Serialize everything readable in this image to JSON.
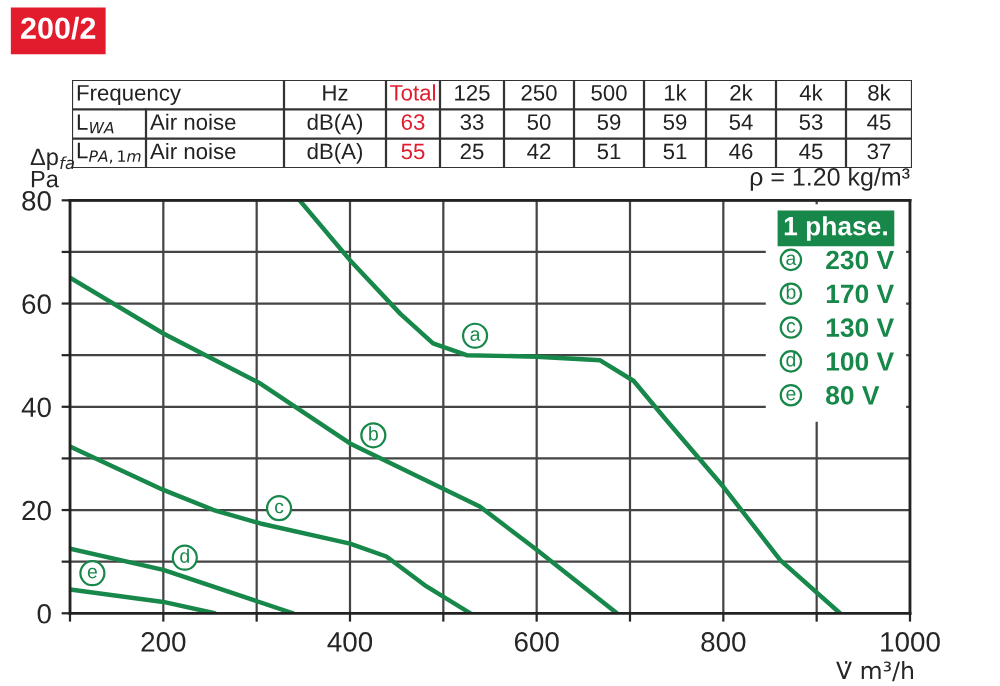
{
  "chart_data": {
    "type": "line",
    "xlabel": "V̇ m³/h",
    "ylabel": "Δp$_{fa}$\nPa",
    "legend_title": "1 phase.",
    "xlim": [
      100,
      1000
    ],
    "ylim": [
      0,
      80
    ],
    "xticks": [
      {
        "value": 100,
        "label": null
      },
      200,
      {
        "value": 300,
        "label": null
      },
      400,
      {
        "value": 500,
        "label": null
      },
      600,
      {
        "value": 700,
        "label": null
      },
      800,
      {
        "value": 900,
        "label": null
      },
      1000
    ],
    "yticks": [
      0,
      {
        "value": 10,
        "label": null
      },
      20,
      {
        "value": 30,
        "label": null
      },
      40,
      {
        "value": 50,
        "label": null
      },
      60,
      {
        "value": 70,
        "label": null
      },
      80
    ],
    "grid": true,
    "legend": "top right",
    "line_style": "solid",
    "marker": "none",
    "series": [
      {
        "name": "230 V",
        "color": "#17884a",
        "x": [
          346,
          400,
          454,
          489,
          525,
          600,
          668,
          704,
          739,
          800,
          861,
          925
        ],
        "values": [
          80,
          68.4,
          58,
          52.3,
          50,
          49.7,
          49,
          45,
          37.4,
          24.5,
          10.3,
          0
        ]
      },
      {
        "name": "170 V",
        "color": "#17884a",
        "x": [
          100,
          200,
          304,
          400,
          539,
          600,
          686
        ],
        "values": [
          65,
          54.2,
          44.5,
          32.9,
          20.7,
          12.3,
          0
        ]
      },
      {
        "name": "130 V",
        "color": "#17884a",
        "x": [
          100,
          200,
          254,
          304,
          400,
          439,
          482,
          529
        ],
        "values": [
          32.3,
          23.9,
          20,
          17.4,
          13.5,
          11,
          5.2,
          0
        ]
      },
      {
        "name": "100 V",
        "color": "#17884a",
        "x": [
          100,
          200,
          339
        ],
        "values": [
          12.5,
          8.4,
          0
        ]
      },
      {
        "name": "80 V",
        "color": "#17884a",
        "x": [
          100,
          200,
          255
        ],
        "values": [
          4.6,
          2.2,
          0
        ]
      }
    ],
    "annotations": [
      "200/2",
      "ρ = 1.20 kg/m³",
      "Frequency",
      "Hz",
      "Total",
      "125",
      "250",
      "500",
      "1k",
      "2k",
      "4k",
      "8k",
      "L$_{WA}$",
      "Air noise",
      "dB(A)",
      "63",
      "33",
      "50",
      "59",
      "59",
      "54",
      "53",
      "45",
      "L$_{PA,1m}$",
      "Air noise",
      "dB(A)",
      "55",
      "25",
      "42",
      "51",
      "51",
      "46",
      "45",
      "37",
      {
        "text": "a",
        "x": 534,
        "y": 50
      },
      {
        "text": "b",
        "x": 425,
        "y": 30.7
      },
      {
        "text": "c",
        "x": 324,
        "y": 16.6
      },
      {
        "text": "d",
        "x": 223,
        "y": 7.0
      },
      {
        "text": "e",
        "x": 124,
        "y": 4.0
      }
    ]
  }
}
